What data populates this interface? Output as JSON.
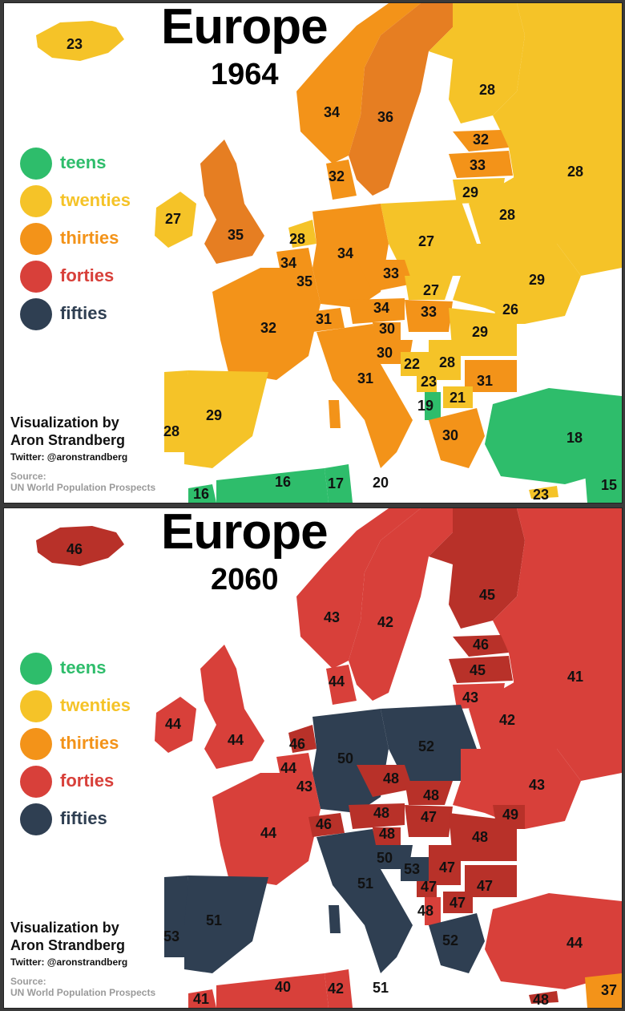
{
  "colors": {
    "teens": "#2ebd6b",
    "twenties": "#f5c328",
    "thirties": "#f39319",
    "forties": "#d8403a",
    "forties_dark": "#b83129",
    "fifties": "#2f3f52",
    "grey": "#bdbdbd"
  },
  "legend": [
    {
      "key": "teens",
      "label": "teens",
      "color": "#2ebd6b"
    },
    {
      "key": "twenties",
      "label": "twenties",
      "color": "#f5c328"
    },
    {
      "key": "thirties",
      "label": "thirties",
      "color": "#f39319"
    },
    {
      "key": "forties",
      "label": "forties",
      "color": "#d8403a"
    },
    {
      "key": "fifties",
      "label": "fifties",
      "color": "#2f3f52"
    }
  ],
  "credit": {
    "by_line1": "Visualization by",
    "by_line2": "Aron Strandberg",
    "twitter": "Twitter: @aronstrandberg",
    "source_label": "Source:",
    "source": "UN World Population Prospects"
  },
  "maps": [
    {
      "title": "Europe",
      "year": "1964",
      "regions": [
        {
          "name": "Iceland",
          "value": "23"
        },
        {
          "name": "Norway",
          "value": "34"
        },
        {
          "name": "Sweden",
          "value": "36"
        },
        {
          "name": "Finland",
          "value": "28"
        },
        {
          "name": "Estonia",
          "value": "32"
        },
        {
          "name": "Latvia",
          "value": "33"
        },
        {
          "name": "Lithuania",
          "value": "29"
        },
        {
          "name": "Russia",
          "value": "28"
        },
        {
          "name": "Belarus",
          "value": "28"
        },
        {
          "name": "Denmark",
          "value": "32"
        },
        {
          "name": "Ireland",
          "value": "27"
        },
        {
          "name": "United Kingdom",
          "value": "35"
        },
        {
          "name": "Netherlands",
          "value": "28"
        },
        {
          "name": "Belgium",
          "value": "34"
        },
        {
          "name": "Luxembourg",
          "value": "35"
        },
        {
          "name": "Germany",
          "value": "34"
        },
        {
          "name": "Poland",
          "value": "27"
        },
        {
          "name": "Czechia",
          "value": "33"
        },
        {
          "name": "Slovakia",
          "value": "27"
        },
        {
          "name": "Ukraine",
          "value": "29"
        },
        {
          "name": "France",
          "value": "32"
        },
        {
          "name": "Switzerland",
          "value": "31"
        },
        {
          "name": "Austria",
          "value": "34"
        },
        {
          "name": "Hungary",
          "value": "33"
        },
        {
          "name": "Moldova",
          "value": "26"
        },
        {
          "name": "Slovenia",
          "value": "30"
        },
        {
          "name": "Croatia",
          "value": "30"
        },
        {
          "name": "Romania",
          "value": "29"
        },
        {
          "name": "Bosnia",
          "value": "22"
        },
        {
          "name": "Serbia",
          "value": "28"
        },
        {
          "name": "Montenegro",
          "value": "23"
        },
        {
          "name": "Bulgaria",
          "value": "31"
        },
        {
          "name": "Italy",
          "value": "31"
        },
        {
          "name": "Albania",
          "value": "19"
        },
        {
          "name": "North Macedonia",
          "value": "21"
        },
        {
          "name": "Spain",
          "value": "29"
        },
        {
          "name": "Portugal",
          "value": "28"
        },
        {
          "name": "Greece",
          "value": "30"
        },
        {
          "name": "Turkey",
          "value": "18"
        },
        {
          "name": "Morocco",
          "value": "16"
        },
        {
          "name": "Algeria",
          "value": "16"
        },
        {
          "name": "Tunisia",
          "value": "17"
        },
        {
          "name": "Malta",
          "value": "20"
        },
        {
          "name": "Cyprus",
          "value": "23"
        },
        {
          "name": "Syria",
          "value": "15"
        }
      ]
    },
    {
      "title": "Europe",
      "year": "2060",
      "regions": [
        {
          "name": "Iceland",
          "value": "46"
        },
        {
          "name": "Norway",
          "value": "43"
        },
        {
          "name": "Sweden",
          "value": "42"
        },
        {
          "name": "Finland",
          "value": "45"
        },
        {
          "name": "Estonia",
          "value": "46"
        },
        {
          "name": "Latvia",
          "value": "45"
        },
        {
          "name": "Lithuania",
          "value": "43"
        },
        {
          "name": "Russia",
          "value": "41"
        },
        {
          "name": "Belarus",
          "value": "42"
        },
        {
          "name": "Denmark",
          "value": "44"
        },
        {
          "name": "Ireland",
          "value": "44"
        },
        {
          "name": "United Kingdom",
          "value": "44"
        },
        {
          "name": "Netherlands",
          "value": "46"
        },
        {
          "name": "Belgium",
          "value": "44"
        },
        {
          "name": "Luxembourg",
          "value": "43"
        },
        {
          "name": "Germany",
          "value": "50"
        },
        {
          "name": "Poland",
          "value": "52"
        },
        {
          "name": "Czechia",
          "value": "48"
        },
        {
          "name": "Slovakia",
          "value": "48"
        },
        {
          "name": "Ukraine",
          "value": "43"
        },
        {
          "name": "France",
          "value": "44"
        },
        {
          "name": "Switzerland",
          "value": "46"
        },
        {
          "name": "Austria",
          "value": "48"
        },
        {
          "name": "Hungary",
          "value": "47"
        },
        {
          "name": "Moldova",
          "value": "49"
        },
        {
          "name": "Slovenia",
          "value": "48"
        },
        {
          "name": "Croatia",
          "value": "50"
        },
        {
          "name": "Romania",
          "value": "48"
        },
        {
          "name": "Bosnia",
          "value": "53"
        },
        {
          "name": "Serbia",
          "value": "47"
        },
        {
          "name": "Montenegro",
          "value": "47"
        },
        {
          "name": "Bulgaria",
          "value": "47"
        },
        {
          "name": "Italy",
          "value": "51"
        },
        {
          "name": "Albania",
          "value": "48"
        },
        {
          "name": "North Macedonia",
          "value": "47"
        },
        {
          "name": "Spain",
          "value": "51"
        },
        {
          "name": "Portugal",
          "value": "53"
        },
        {
          "name": "Greece",
          "value": "52"
        },
        {
          "name": "Turkey",
          "value": "44"
        },
        {
          "name": "Morocco",
          "value": "41"
        },
        {
          "name": "Algeria",
          "value": "40"
        },
        {
          "name": "Tunisia",
          "value": "42"
        },
        {
          "name": "Malta",
          "value": "51"
        },
        {
          "name": "Cyprus",
          "value": "48"
        },
        {
          "name": "Syria",
          "value": "37"
        }
      ]
    }
  ]
}
